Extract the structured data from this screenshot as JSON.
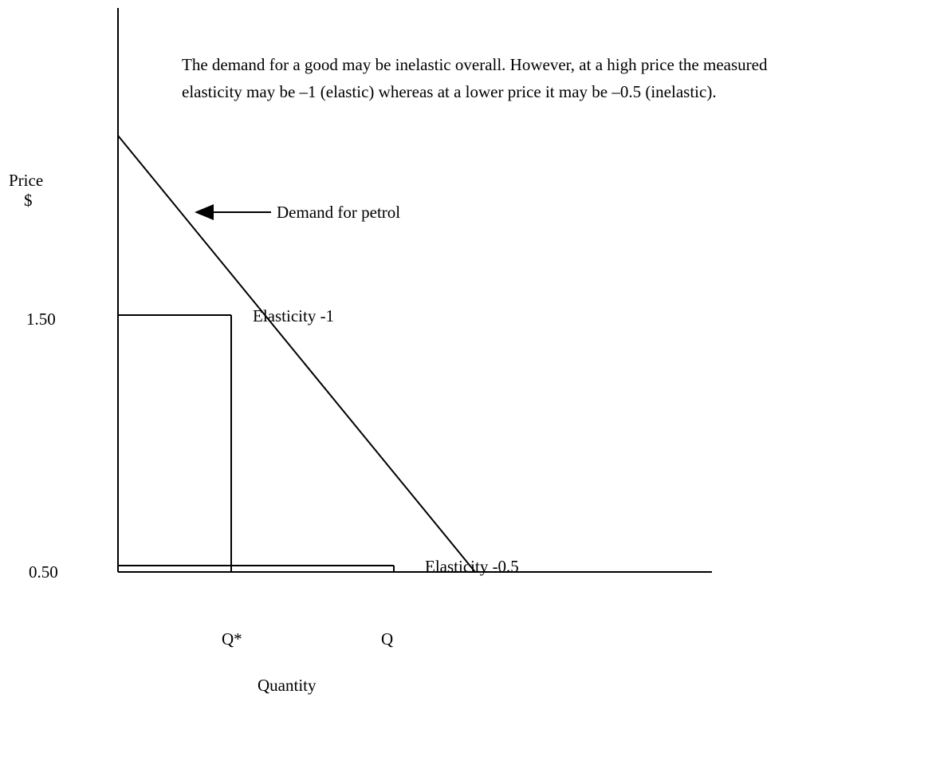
{
  "annotation": {
    "line1": "The demand for a good may be inelastic overall. However, at a high price the measured",
    "line2": "elasticity may be –1 (elastic) whereas at a lower price it may be –0.5 (inelastic)."
  },
  "y_axis": {
    "label_line1": "Price",
    "label_line2": "$",
    "ticks": [
      "1.50",
      "0.50"
    ]
  },
  "x_axis": {
    "label": "Quantity",
    "ticks": [
      "Q*",
      "Q"
    ]
  },
  "demand_curve": {
    "label": "Demand for  petrol"
  },
  "points": [
    {
      "price": "1.50",
      "quantity": "Q*",
      "label": "Elasticity -1"
    },
    {
      "price": "0.50",
      "quantity": "Q",
      "label": "Elasticity -0.5"
    }
  ],
  "colors": {
    "ink": "#000000",
    "background": "#ffffff"
  }
}
